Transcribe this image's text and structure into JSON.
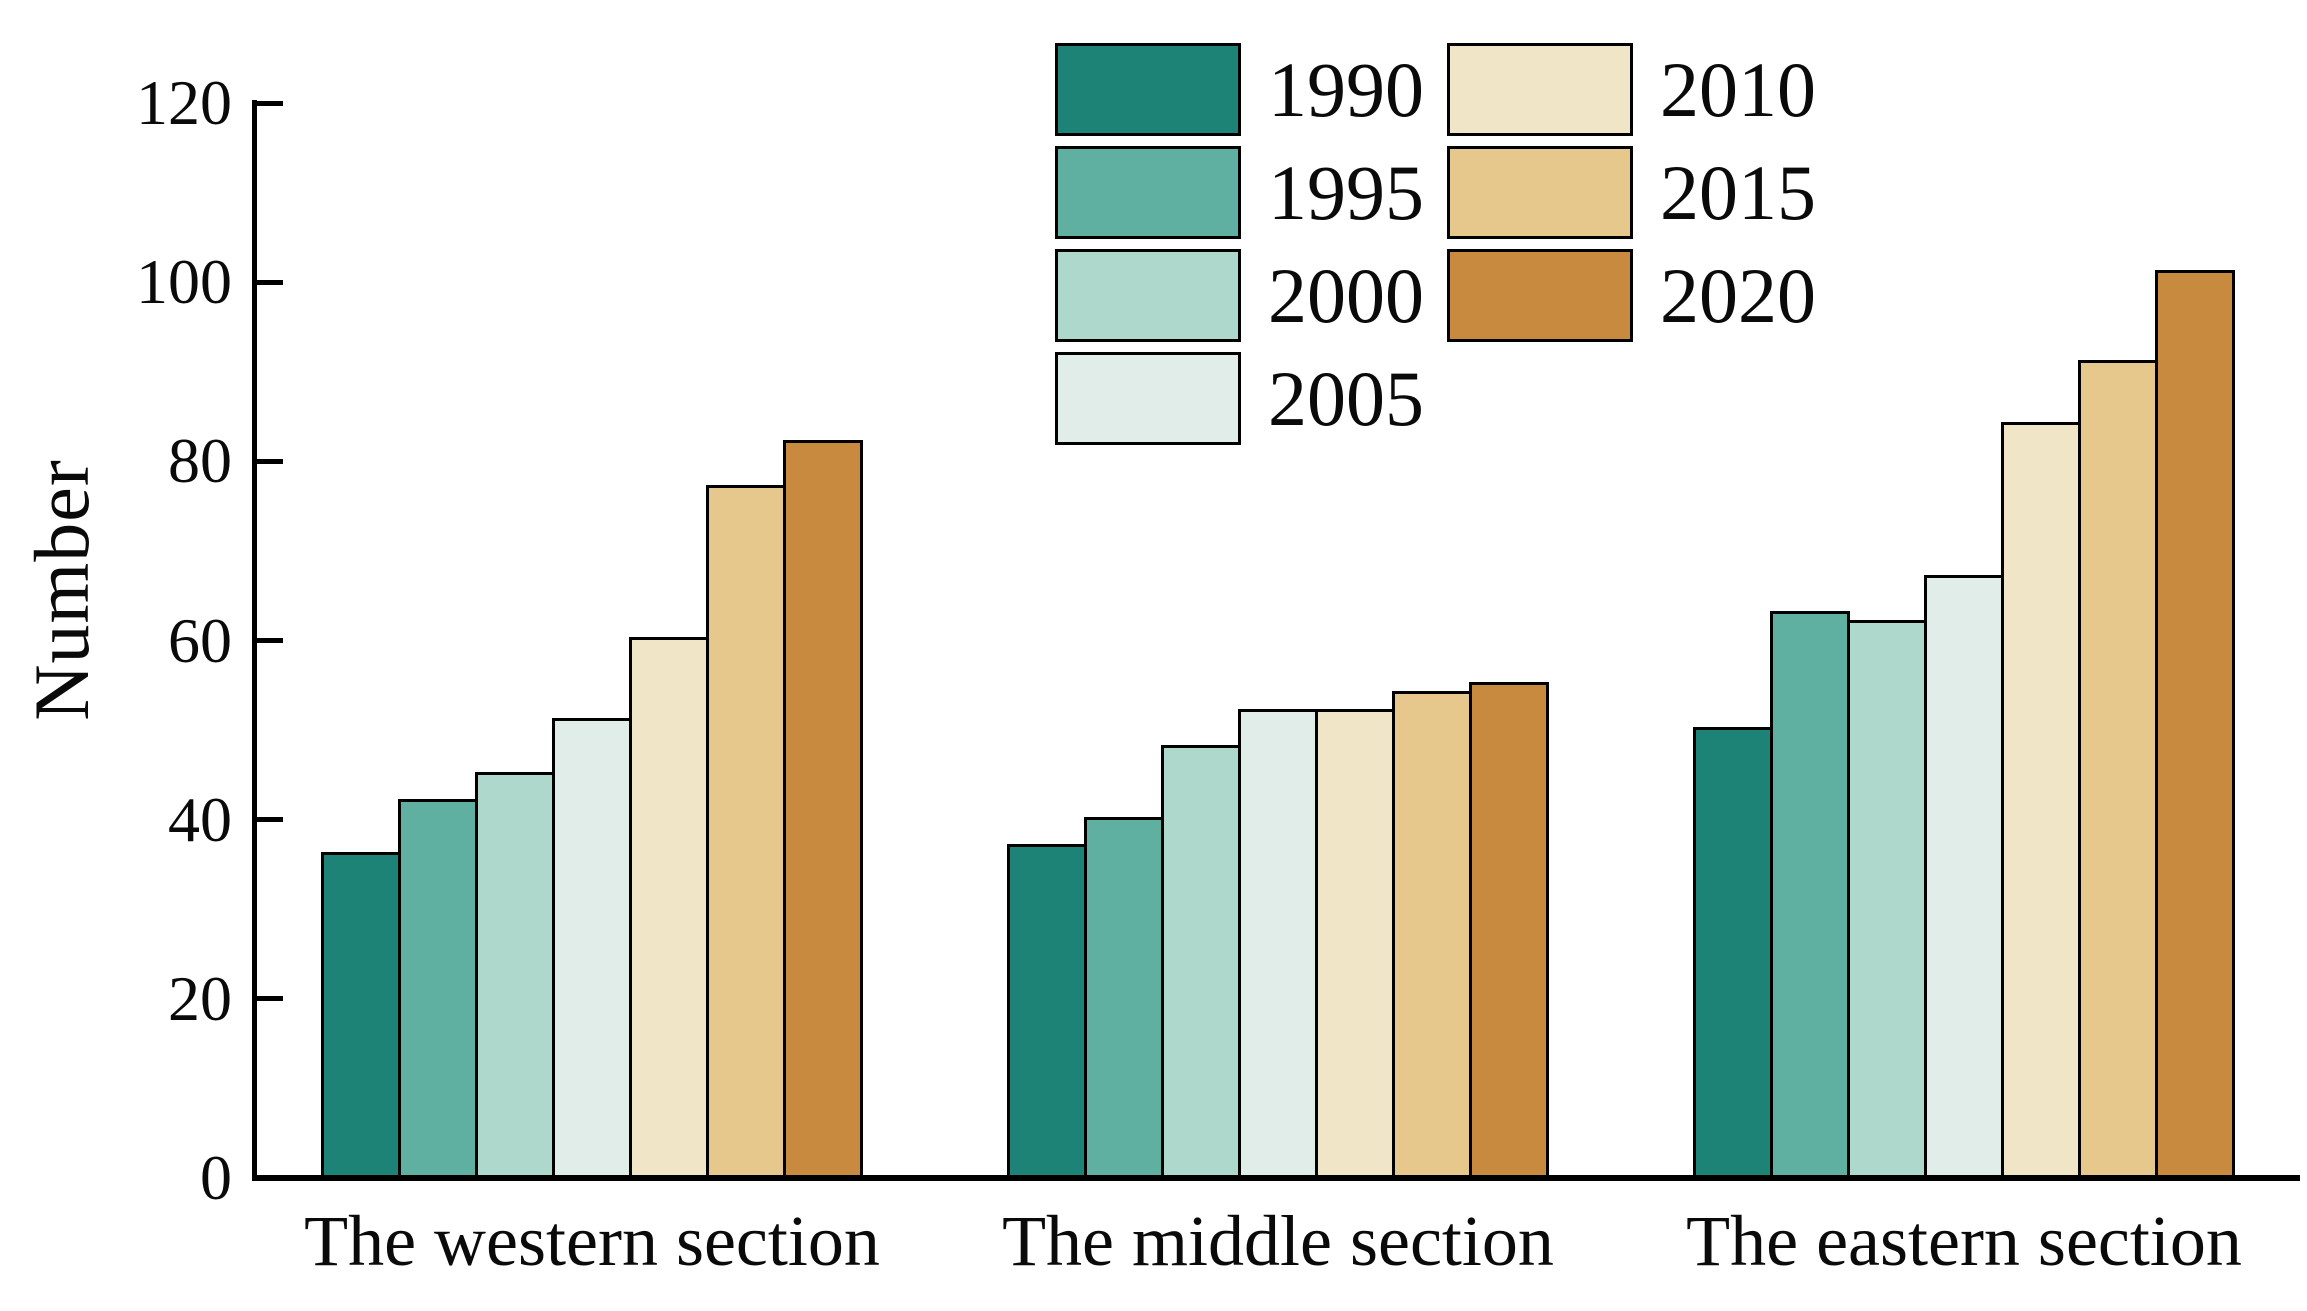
{
  "chart_data": {
    "type": "bar",
    "title": "",
    "ylabel": "Number",
    "xlabel": "",
    "ylim": [
      0,
      120
    ],
    "yticks": [
      0,
      20,
      40,
      60,
      80,
      100,
      120
    ],
    "grid": false,
    "background": "#ffffff",
    "axis_color": "#000000",
    "categories": [
      "The western section",
      "The middle section",
      "The eastern section"
    ],
    "series": [
      {
        "name": "1990",
        "color": "#1e8377",
        "values": [
          36,
          37,
          50
        ]
      },
      {
        "name": "1995",
        "color": "#5fb0a1",
        "values": [
          42,
          40,
          63
        ]
      },
      {
        "name": "2000",
        "color": "#aed8cc",
        "values": [
          45,
          48,
          62
        ]
      },
      {
        "name": "2005",
        "color": "#e0ede8",
        "values": [
          51,
          52,
          67
        ]
      },
      {
        "name": "2010",
        "color": "#f1e5c7",
        "values": [
          60,
          52,
          84
        ]
      },
      {
        "name": "2015",
        "color": "#e6c88c",
        "values": [
          77,
          54,
          91
        ]
      },
      {
        "name": "2020",
        "color": "#c88a3e",
        "values": [
          82,
          55,
          101
        ]
      }
    ],
    "legend": {
      "position": "top-center",
      "columns": [
        [
          "1990",
          "1995",
          "2000",
          "2005"
        ],
        [
          "2010",
          "2015",
          "2020"
        ]
      ]
    }
  }
}
